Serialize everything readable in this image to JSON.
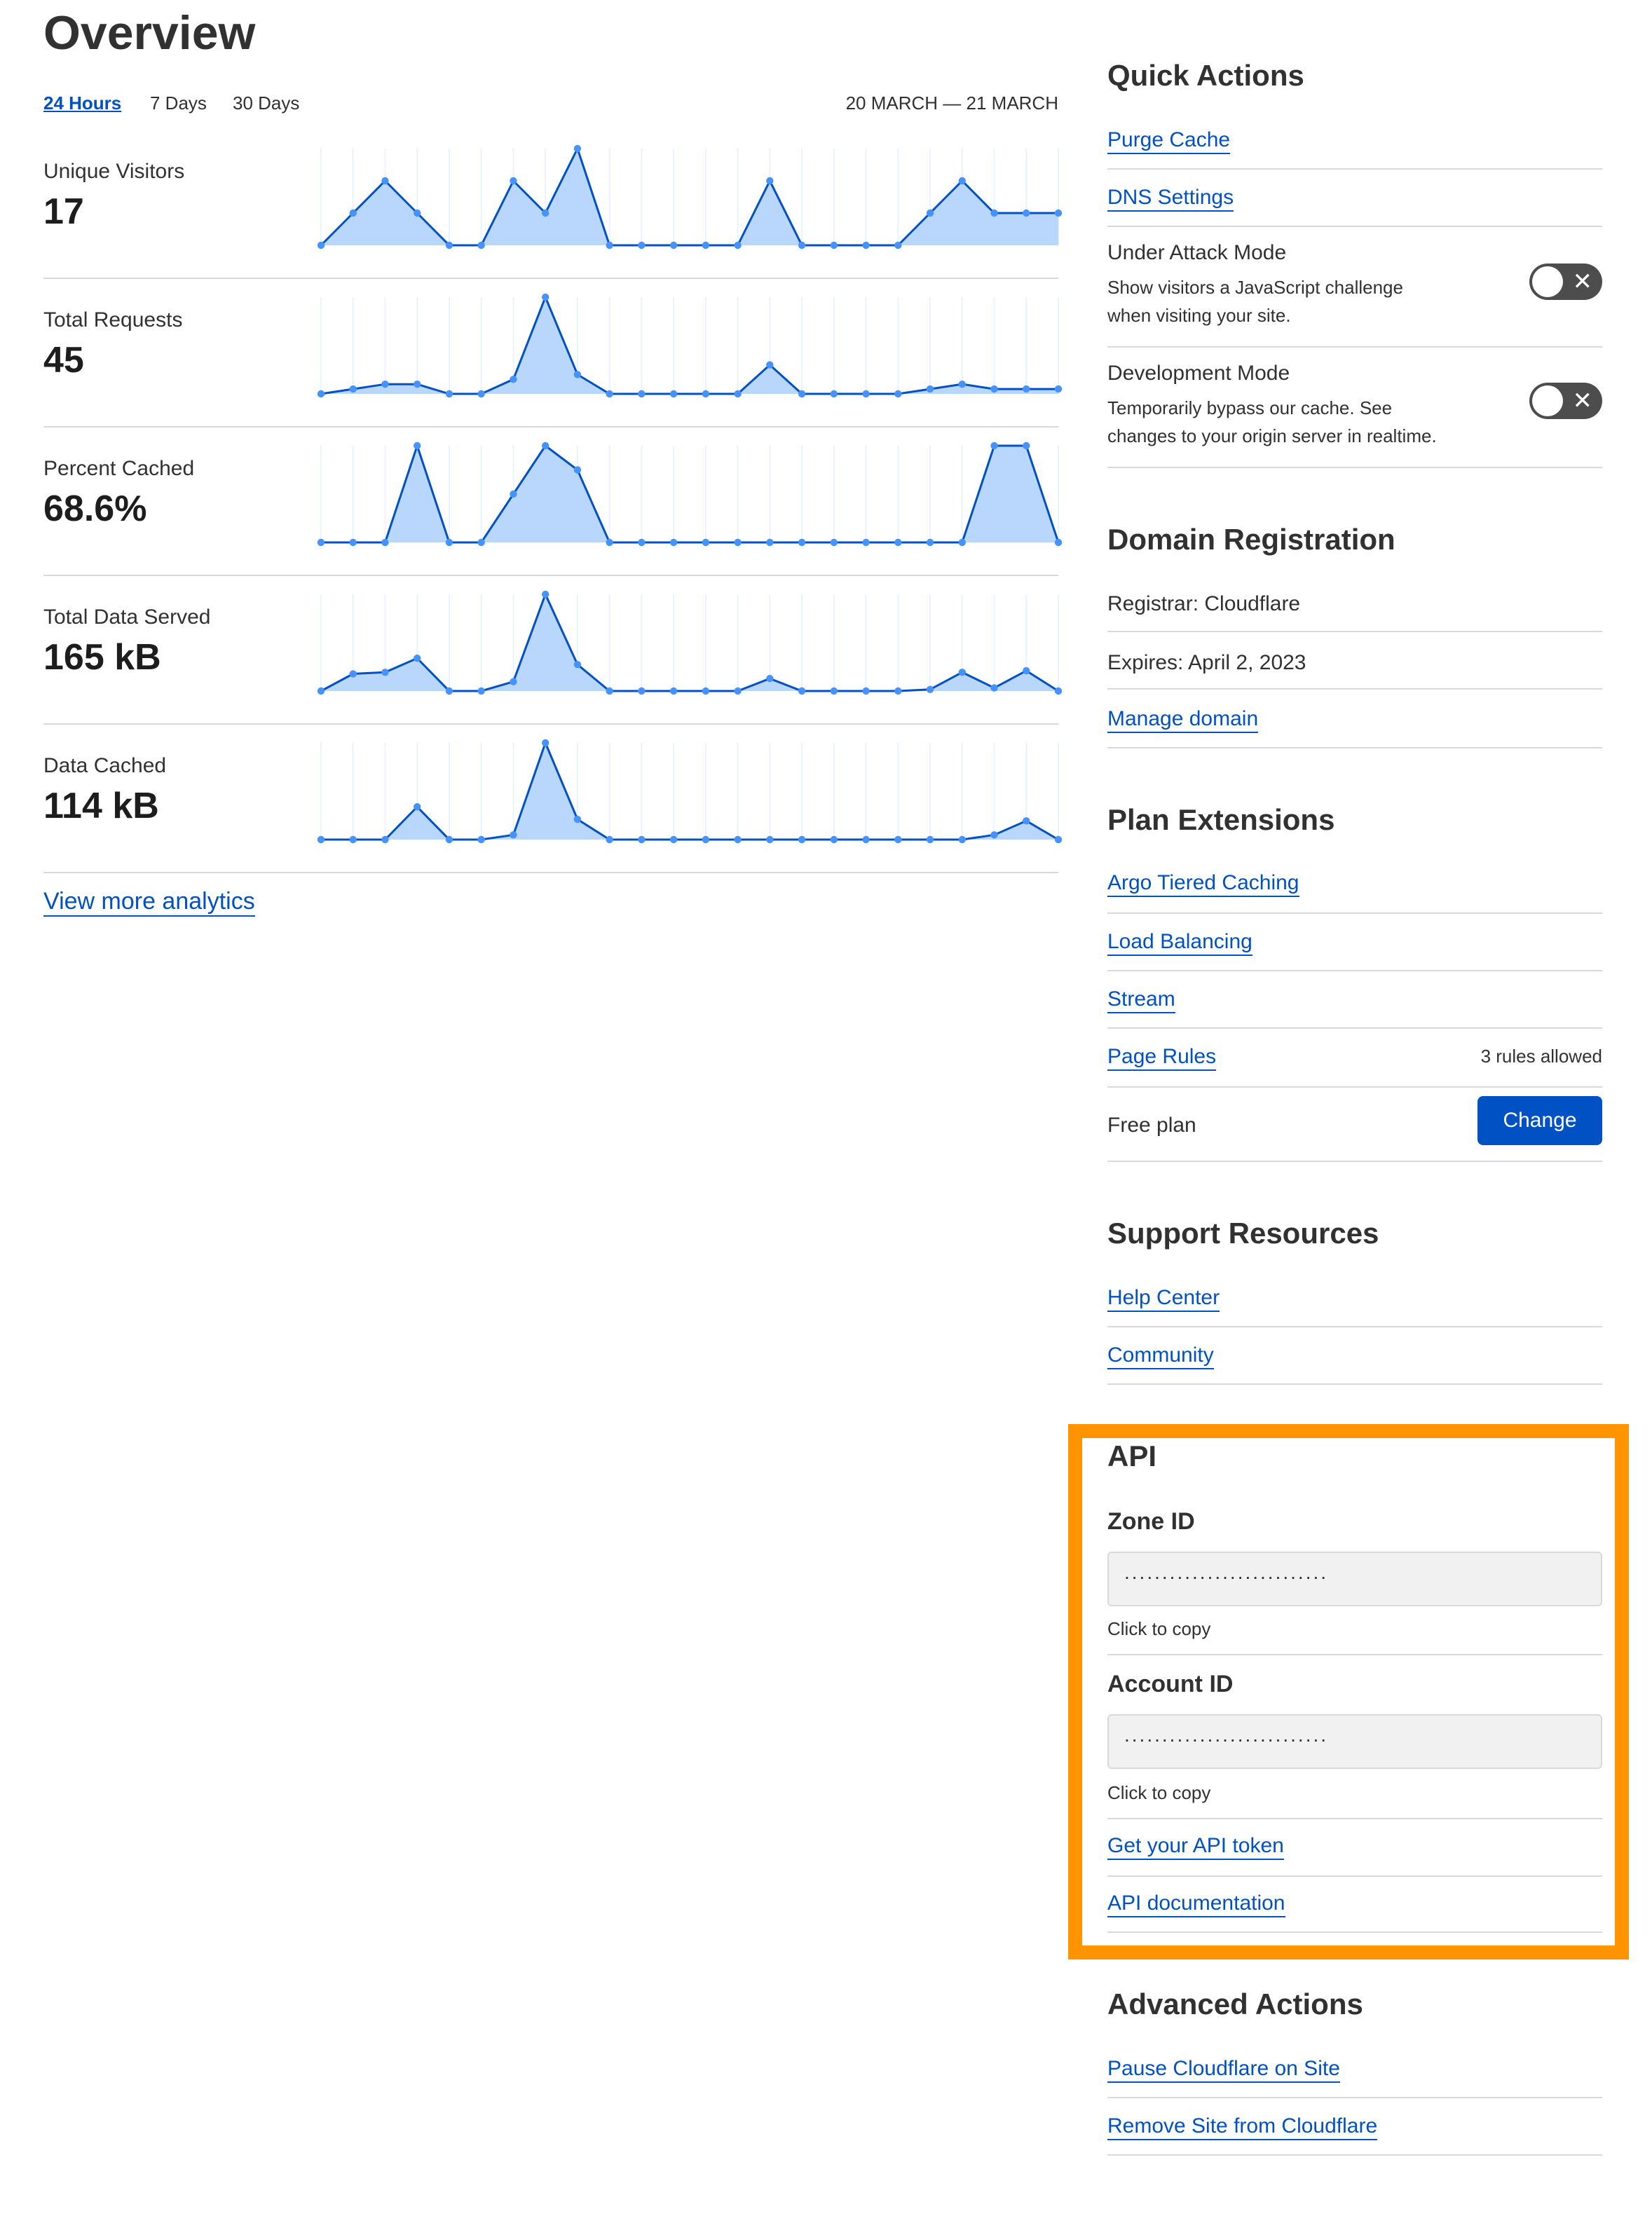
{
  "overview": {
    "title": "Overview",
    "tabs": [
      {
        "label": "24 Hours",
        "active": true
      },
      {
        "label": "7 Days",
        "active": false
      },
      {
        "label": "30 Days",
        "active": false
      }
    ],
    "date_range": "20 MARCH — 21 MARCH",
    "view_more": "View more analytics"
  },
  "chart_data": [
    {
      "type": "area",
      "label": "Unique Visitors",
      "value": "17",
      "values": [
        0,
        1,
        2,
        1,
        0,
        0,
        2,
        1,
        3,
        0,
        0,
        0,
        0,
        0,
        2,
        0,
        0,
        0,
        0,
        1,
        2,
        1,
        1,
        1
      ]
    },
    {
      "type": "area",
      "label": "Total Requests",
      "value": "45",
      "values": [
        0,
        1,
        2,
        2,
        0,
        0,
        3,
        20,
        4,
        0,
        0,
        0,
        0,
        0,
        6,
        0,
        0,
        0,
        0,
        1,
        2,
        1,
        1,
        1
      ]
    },
    {
      "type": "area",
      "label": "Percent Cached",
      "value": "68.6%",
      "values": [
        0,
        0,
        0,
        100,
        0,
        0,
        50,
        100,
        75,
        0,
        0,
        0,
        0,
        0,
        0,
        0,
        0,
        0,
        0,
        0,
        0,
        100,
        100,
        0
      ]
    },
    {
      "type": "area",
      "label": "Total Data Served",
      "value": "165 kB",
      "values": [
        0,
        11,
        12,
        21,
        0,
        0,
        6,
        62,
        17,
        0,
        0,
        0,
        0,
        0,
        8,
        0,
        0,
        0,
        0,
        1,
        12,
        2,
        13,
        0
      ]
    },
    {
      "type": "area",
      "label": "Data Cached",
      "value": "114 kB",
      "values": [
        0,
        0,
        0,
        21,
        0,
        0,
        3,
        62,
        13,
        0,
        0,
        0,
        0,
        0,
        0,
        0,
        0,
        0,
        0,
        0,
        0,
        3,
        12,
        0
      ]
    }
  ],
  "colors": {
    "line": "#0051c3",
    "fill": "#b9d6fc",
    "point": "#4693ff",
    "grid": "#eaf2ff",
    "link": "#0051c3",
    "highlight": "#ff9300"
  },
  "quick_actions": {
    "title": "Quick Actions",
    "purge_cache": "Purge Cache",
    "dns_settings": "DNS Settings",
    "under_attack": {
      "title": "Under Attack Mode",
      "desc1": "Show visitors a JavaScript challenge",
      "desc2": "when visiting your site.",
      "enabled": false,
      "icon": "x-icon",
      "glyph": "✕"
    },
    "dev_mode": {
      "title": "Development Mode",
      "desc1": "Temporarily bypass our cache. See",
      "desc2": "changes to your origin server in realtime.",
      "enabled": false,
      "icon": "x-icon",
      "glyph": "✕"
    }
  },
  "domain_registration": {
    "title": "Domain Registration",
    "registrar": "Registrar: Cloudflare",
    "expires": "Expires: April 2, 2023",
    "manage": "Manage domain"
  },
  "plan_extensions": {
    "title": "Plan Extensions",
    "argo": "Argo Tiered Caching",
    "load_balancing": "Load Balancing",
    "stream": "Stream",
    "page_rules": "Page Rules",
    "page_rules_note": "3 rules allowed",
    "plan": "Free plan",
    "change": "Change"
  },
  "support": {
    "title": "Support Resources",
    "help": "Help Center",
    "community": "Community"
  },
  "api": {
    "title": "API",
    "zone_label": "Zone ID",
    "zone_value": "...........................",
    "account_label": "Account ID",
    "account_value": "...........................",
    "click_to_copy": "Click to copy",
    "token": "Get your API token",
    "docs": "API documentation"
  },
  "advanced": {
    "title": "Advanced Actions",
    "pause": "Pause Cloudflare on Site",
    "remove": "Remove Site from Cloudflare"
  }
}
